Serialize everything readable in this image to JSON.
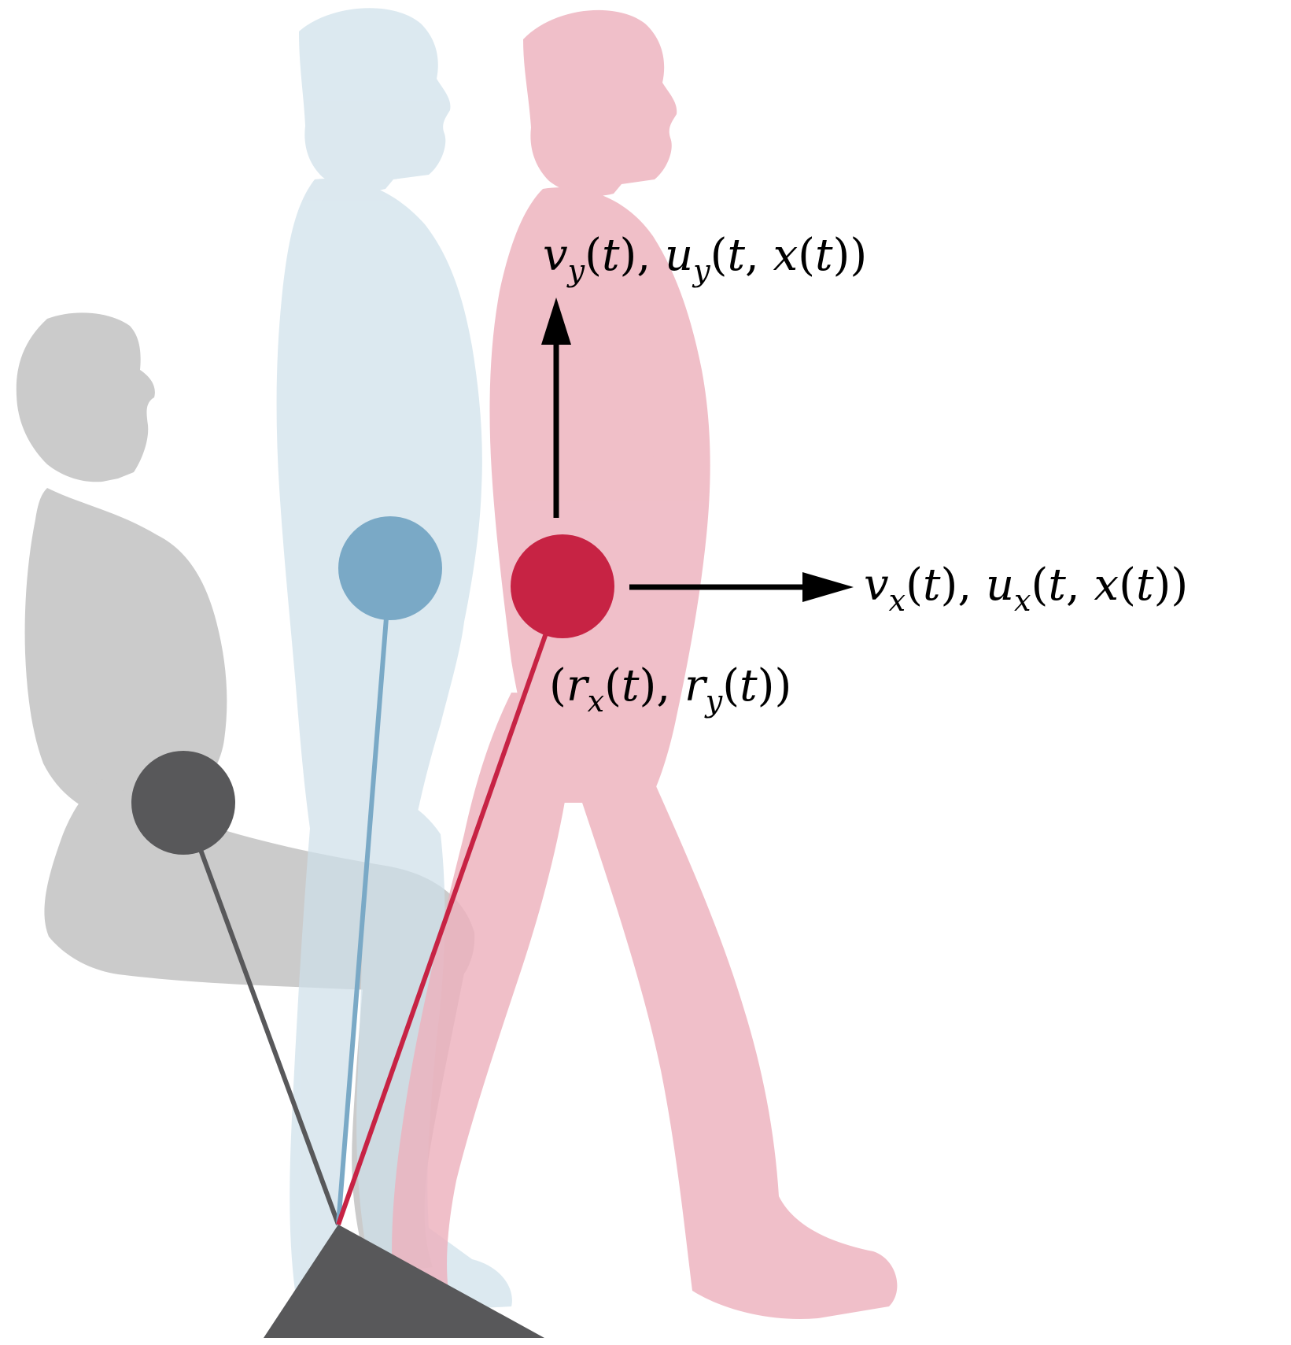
{
  "colors": {
    "sitting_silhouette": "#bdbdbd",
    "standing_silhouette": "#cfe0ea",
    "walking_silhouette": "#edb1bd",
    "sitting_com": "#58585a",
    "standing_com": "#7aa9c6",
    "walking_com": "#c72344",
    "foot_triangle": "#58585a",
    "arrow": "#000000"
  },
  "labels": {
    "vertical_velocity_v": "v",
    "vertical_velocity_sub": "y",
    "vertical_control_u": "u",
    "vertical_control_sub": "y",
    "horizontal_velocity_v": "v",
    "horizontal_velocity_sub": "x",
    "horizontal_control_u": "u",
    "horizontal_control_sub": "x",
    "position_r": "r",
    "position_sub_x": "x",
    "position_sub_y": "y",
    "time": "t",
    "state": "x"
  }
}
